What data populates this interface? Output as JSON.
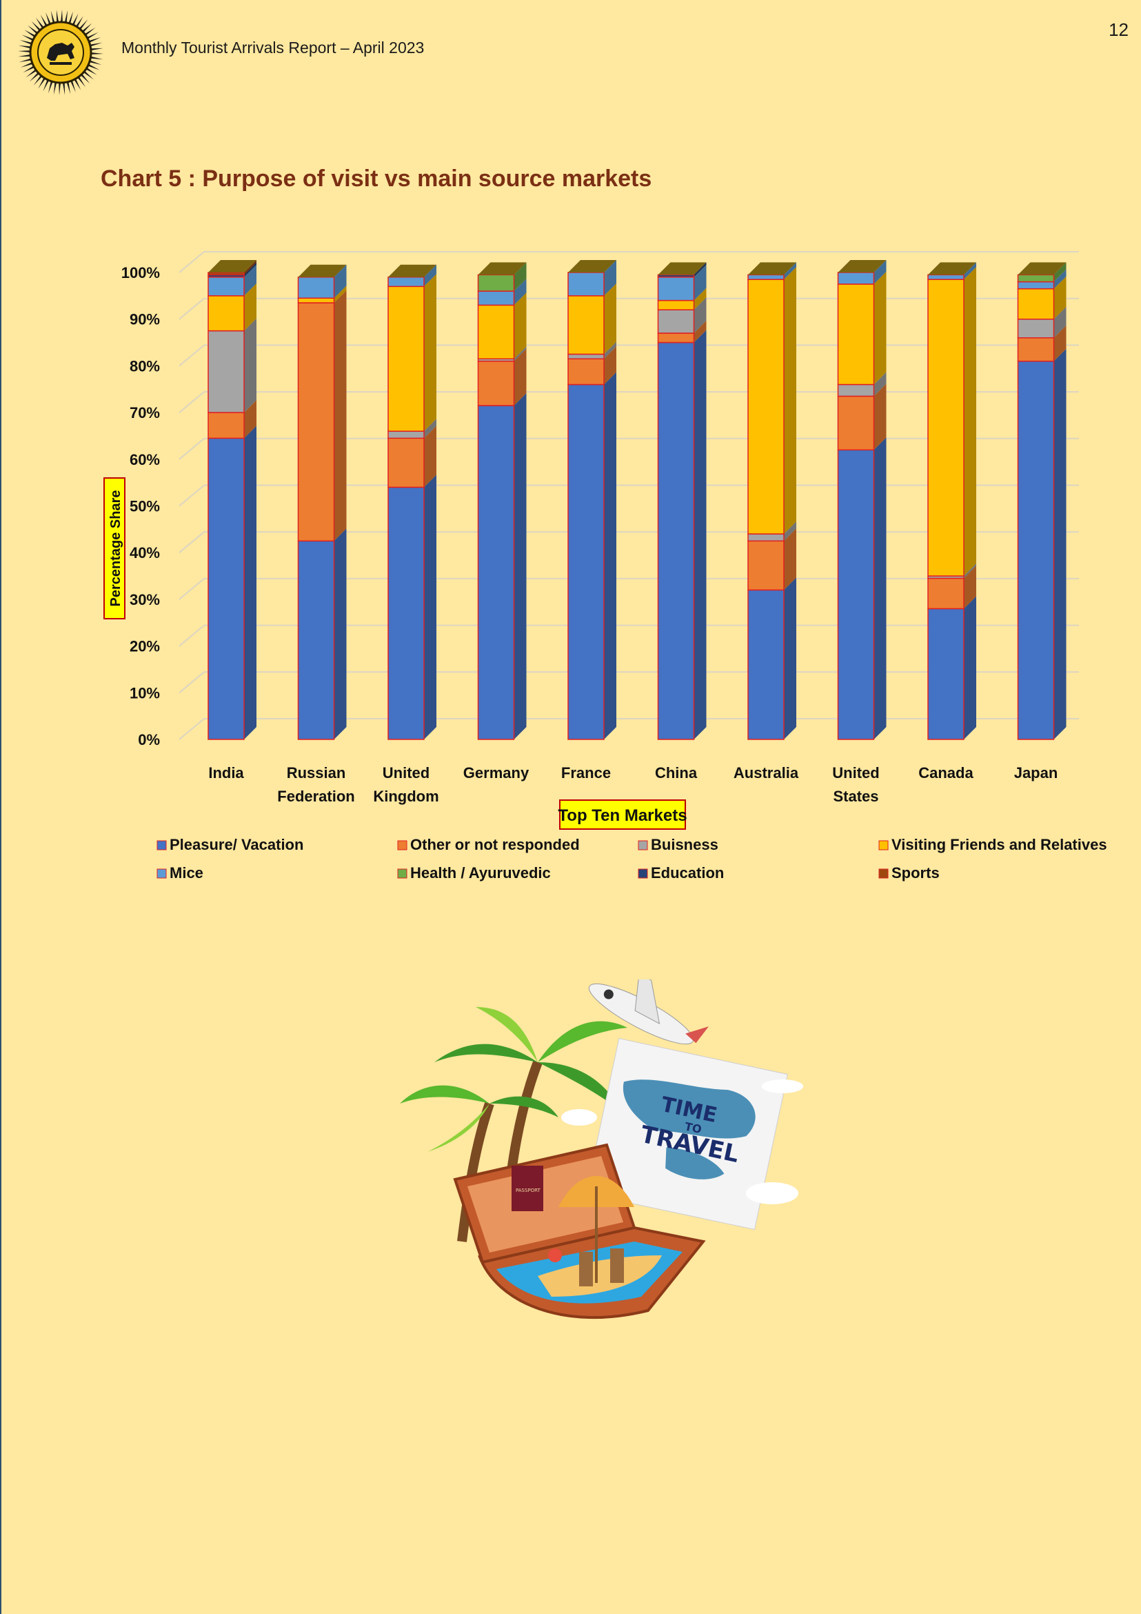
{
  "header": {
    "report_title": "Monthly Tourist Arrivals Report – April 2023",
    "page_number": "12",
    "emblem_icon": "lion-emblem-icon"
  },
  "chart_title": "Chart 5 : Purpose of visit vs main source markets",
  "chart_data": {
    "type": "bar",
    "stacked": true,
    "percent": true,
    "xlabel": "Top Ten Markets",
    "ylabel": "Percentage Share",
    "ylim": [
      0,
      100
    ],
    "yticks": [
      "0%",
      "10%",
      "20%",
      "30%",
      "40%",
      "50%",
      "60%",
      "70%",
      "80%",
      "90%",
      "100%"
    ],
    "grid": true,
    "legend_position": "bottom",
    "categories": [
      [
        "India"
      ],
      [
        "Russian",
        "Federation"
      ],
      [
        "United",
        "Kingdom"
      ],
      [
        "Germany"
      ],
      [
        "France"
      ],
      [
        "China"
      ],
      [
        "Australia"
      ],
      [
        "United",
        "States"
      ],
      [
        "Canada"
      ],
      [
        "Japan"
      ]
    ],
    "series": [
      {
        "name": "Pleasure/ Vacation",
        "color": "#4472C4",
        "values": [
          64.5,
          42.5,
          54.0,
          71.5,
          76.0,
          85.0,
          32.0,
          62.0,
          28.0,
          81.0
        ]
      },
      {
        "name": "Other or not responded",
        "color": "#ED7D31",
        "values": [
          5.5,
          51.0,
          10.5,
          9.5,
          5.5,
          2.0,
          10.5,
          11.5,
          6.5,
          5.0
        ]
      },
      {
        "name": "Buisness",
        "color": "#A5A5A5",
        "values": [
          17.5,
          0.0,
          1.5,
          0.5,
          1.0,
          5.0,
          1.5,
          2.5,
          0.5,
          4.0
        ]
      },
      {
        "name": "Visiting Friends and Relatives",
        "color": "#FFC000",
        "values": [
          7.5,
          1.0,
          31.0,
          11.5,
          12.5,
          2.0,
          54.5,
          21.5,
          63.5,
          6.5
        ]
      },
      {
        "name": "Mice",
        "color": "#5B9BD5",
        "values": [
          4.0,
          4.5,
          2.0,
          3.0,
          5.0,
          5.0,
          1.0,
          2.5,
          1.0,
          1.5
        ]
      },
      {
        "name": "Health / Ayuruvedic",
        "color": "#70AD47",
        "values": [
          0.0,
          0.0,
          0.0,
          3.5,
          0.0,
          0.0,
          0.0,
          0.0,
          0.0,
          1.5
        ]
      },
      {
        "name": "Education",
        "color": "#264478",
        "values": [
          0.5,
          0.0,
          0.0,
          0.0,
          0.0,
          0.5,
          0.0,
          0.0,
          0.0,
          0.0
        ]
      },
      {
        "name": "Sports",
        "color": "#9E480E",
        "values": [
          0.5,
          0.0,
          0.0,
          0.0,
          0.0,
          0.0,
          0.0,
          0.0,
          0.0,
          0.0
        ]
      }
    ]
  },
  "illustration": {
    "icon": "travel-suitcase-illustration-icon",
    "sign_text": [
      "TIME",
      "TO",
      "TRAVEL"
    ],
    "passport_text": "PASSPORT"
  }
}
